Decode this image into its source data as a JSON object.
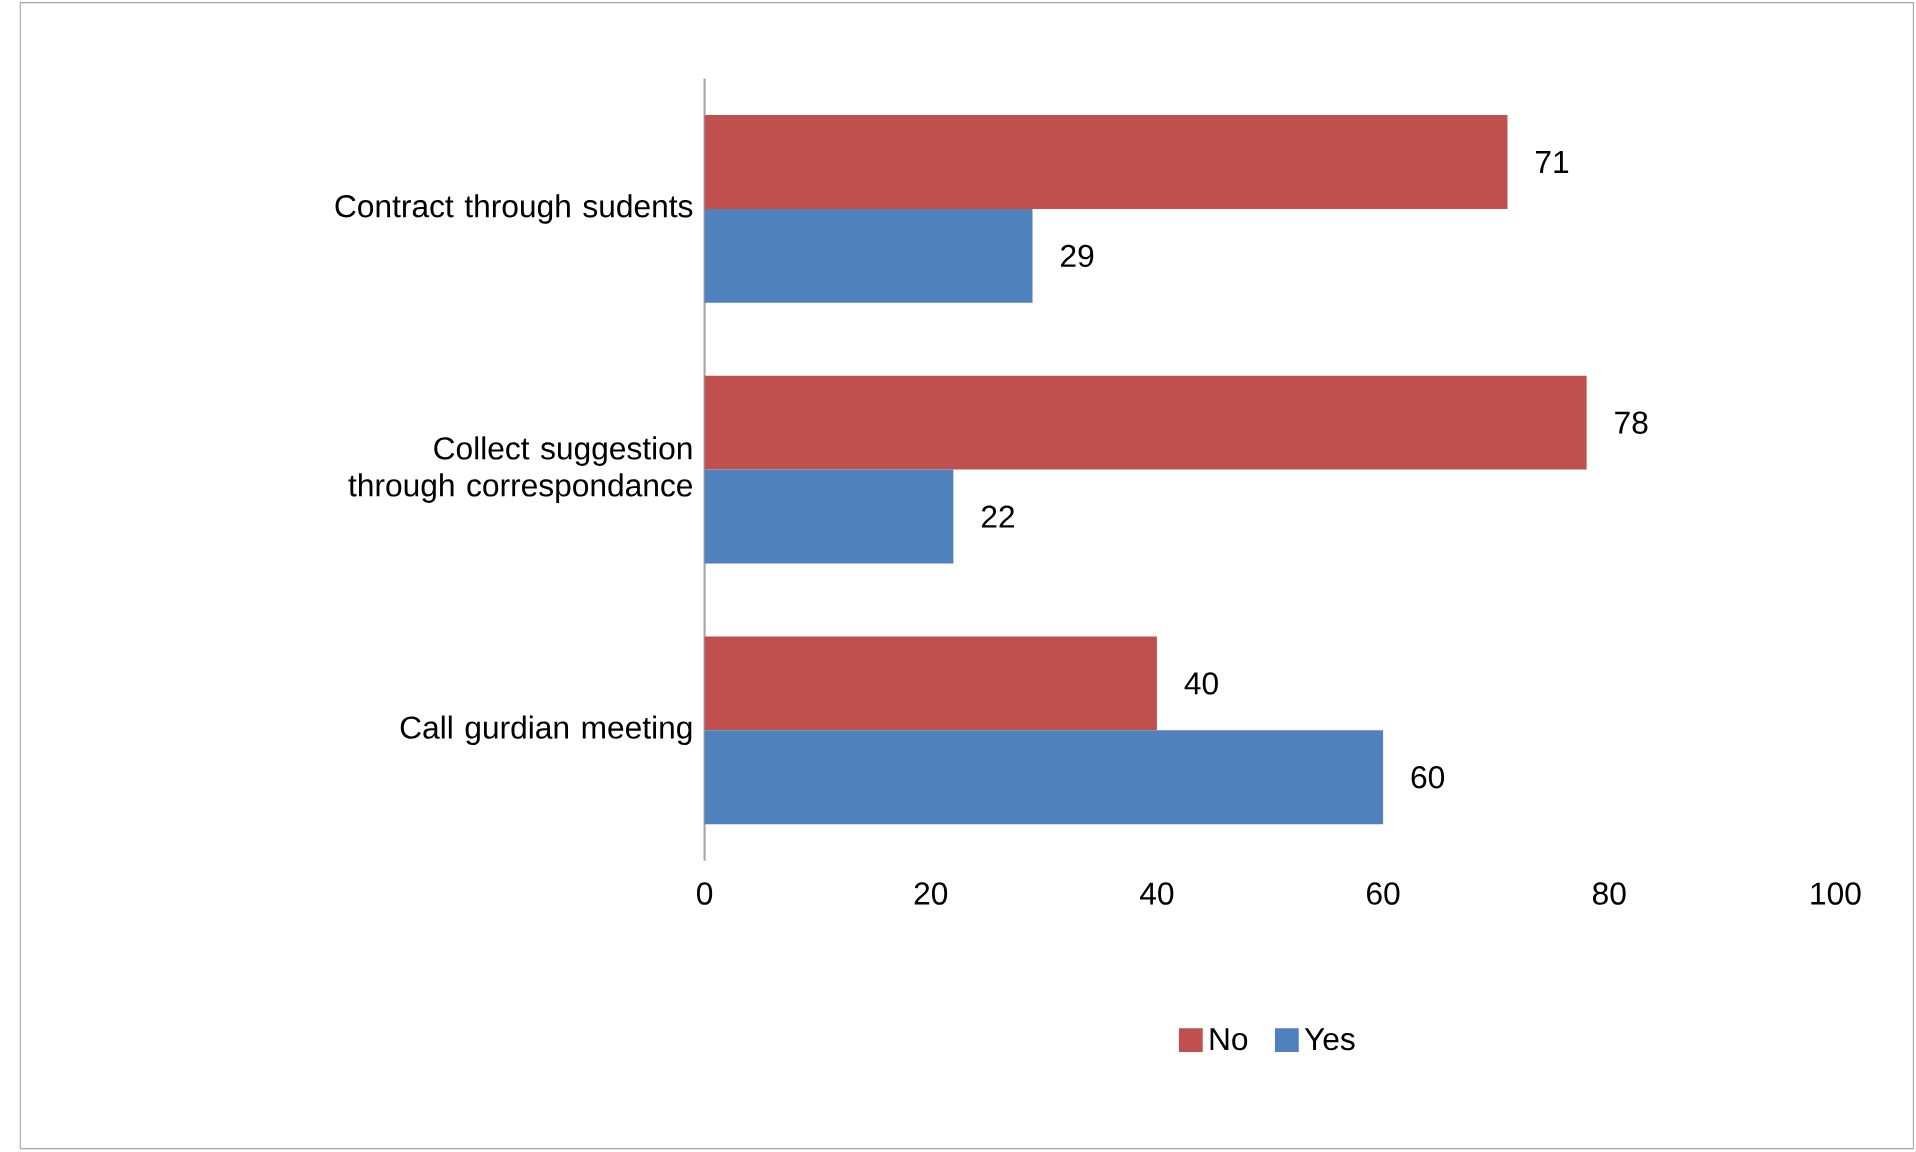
{
  "chart_data": {
    "type": "bar",
    "orientation": "horizontal",
    "categories": [
      "Contract through sudents",
      "Collect suggestion through correspondance",
      "Call gurdian meeting"
    ],
    "series": [
      {
        "name": "No",
        "color": "#c0504d",
        "values": [
          71,
          78,
          40
        ]
      },
      {
        "name": "Yes",
        "color": "#4f81bd",
        "values": [
          29,
          22,
          60
        ]
      }
    ],
    "xlim": [
      0,
      100
    ],
    "xticks": [
      0,
      20,
      40,
      60,
      80,
      100
    ],
    "data_labels": true,
    "legend": "bottom"
  }
}
